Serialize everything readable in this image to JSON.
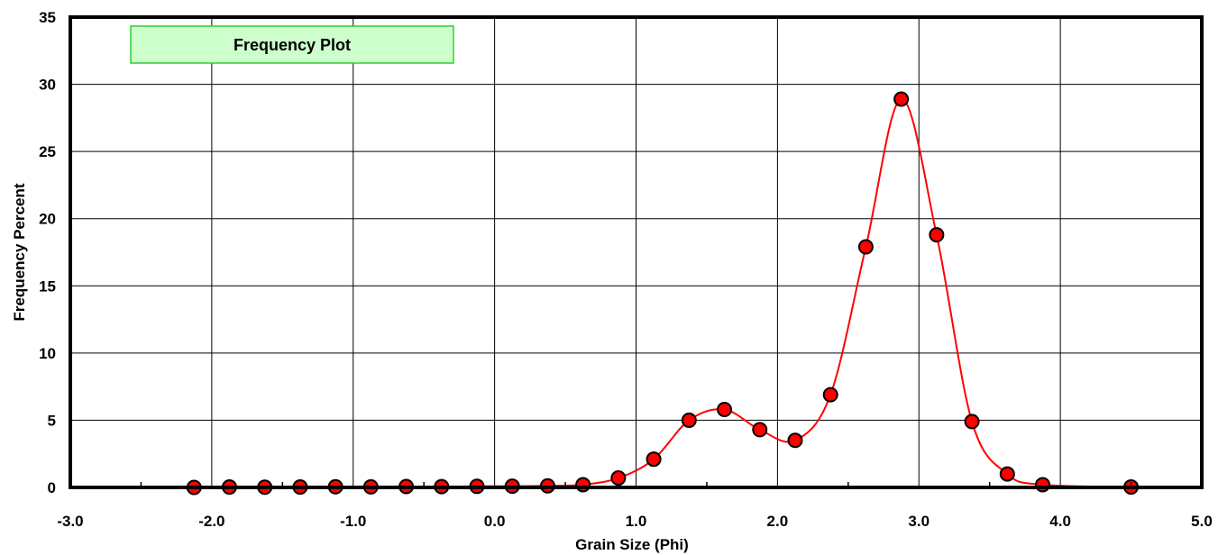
{
  "chart_data": {
    "type": "line",
    "title": "Frequency Plot",
    "xlabel": "Grain Size (Phi)",
    "ylabel": "Frequency Percent",
    "xlim": [
      -3.0,
      5.0
    ],
    "ylim": [
      0,
      35
    ],
    "x_ticks": [
      -3.0,
      -2.0,
      -1.0,
      0.0,
      1.0,
      2.0,
      3.0,
      4.0,
      5.0
    ],
    "x_tick_labels": [
      "-3.0",
      "-2.0",
      "-1.0",
      "0.0",
      "1.0",
      "2.0",
      "3.0",
      "4.0",
      "5.0"
    ],
    "y_ticks": [
      0,
      5,
      10,
      15,
      20,
      25,
      30,
      35
    ],
    "y_tick_labels": [
      "0",
      "5",
      "10",
      "15",
      "20",
      "25",
      "30",
      "35"
    ],
    "grid": true,
    "legend_position": "top-left",
    "series": [
      {
        "color": "#ff0000",
        "marker_color": "#ff0000",
        "x": [
          -2.125,
          -1.875,
          -1.625,
          -1.375,
          -1.125,
          -0.875,
          -0.625,
          -0.375,
          -0.125,
          0.125,
          0.375,
          0.625,
          0.875,
          1.125,
          1.375,
          1.625,
          1.875,
          2.125,
          2.375,
          2.625,
          2.875,
          3.125,
          3.375,
          3.625,
          3.875,
          4.5
        ],
        "y": [
          0.0,
          0.03,
          0.02,
          0.03,
          0.05,
          0.04,
          0.07,
          0.06,
          0.08,
          0.09,
          0.12,
          0.2,
          0.7,
          2.1,
          5.0,
          5.8,
          4.3,
          3.5,
          6.9,
          17.9,
          28.9,
          18.8,
          4.9,
          1.0,
          0.2,
          0.03
        ]
      }
    ]
  }
}
